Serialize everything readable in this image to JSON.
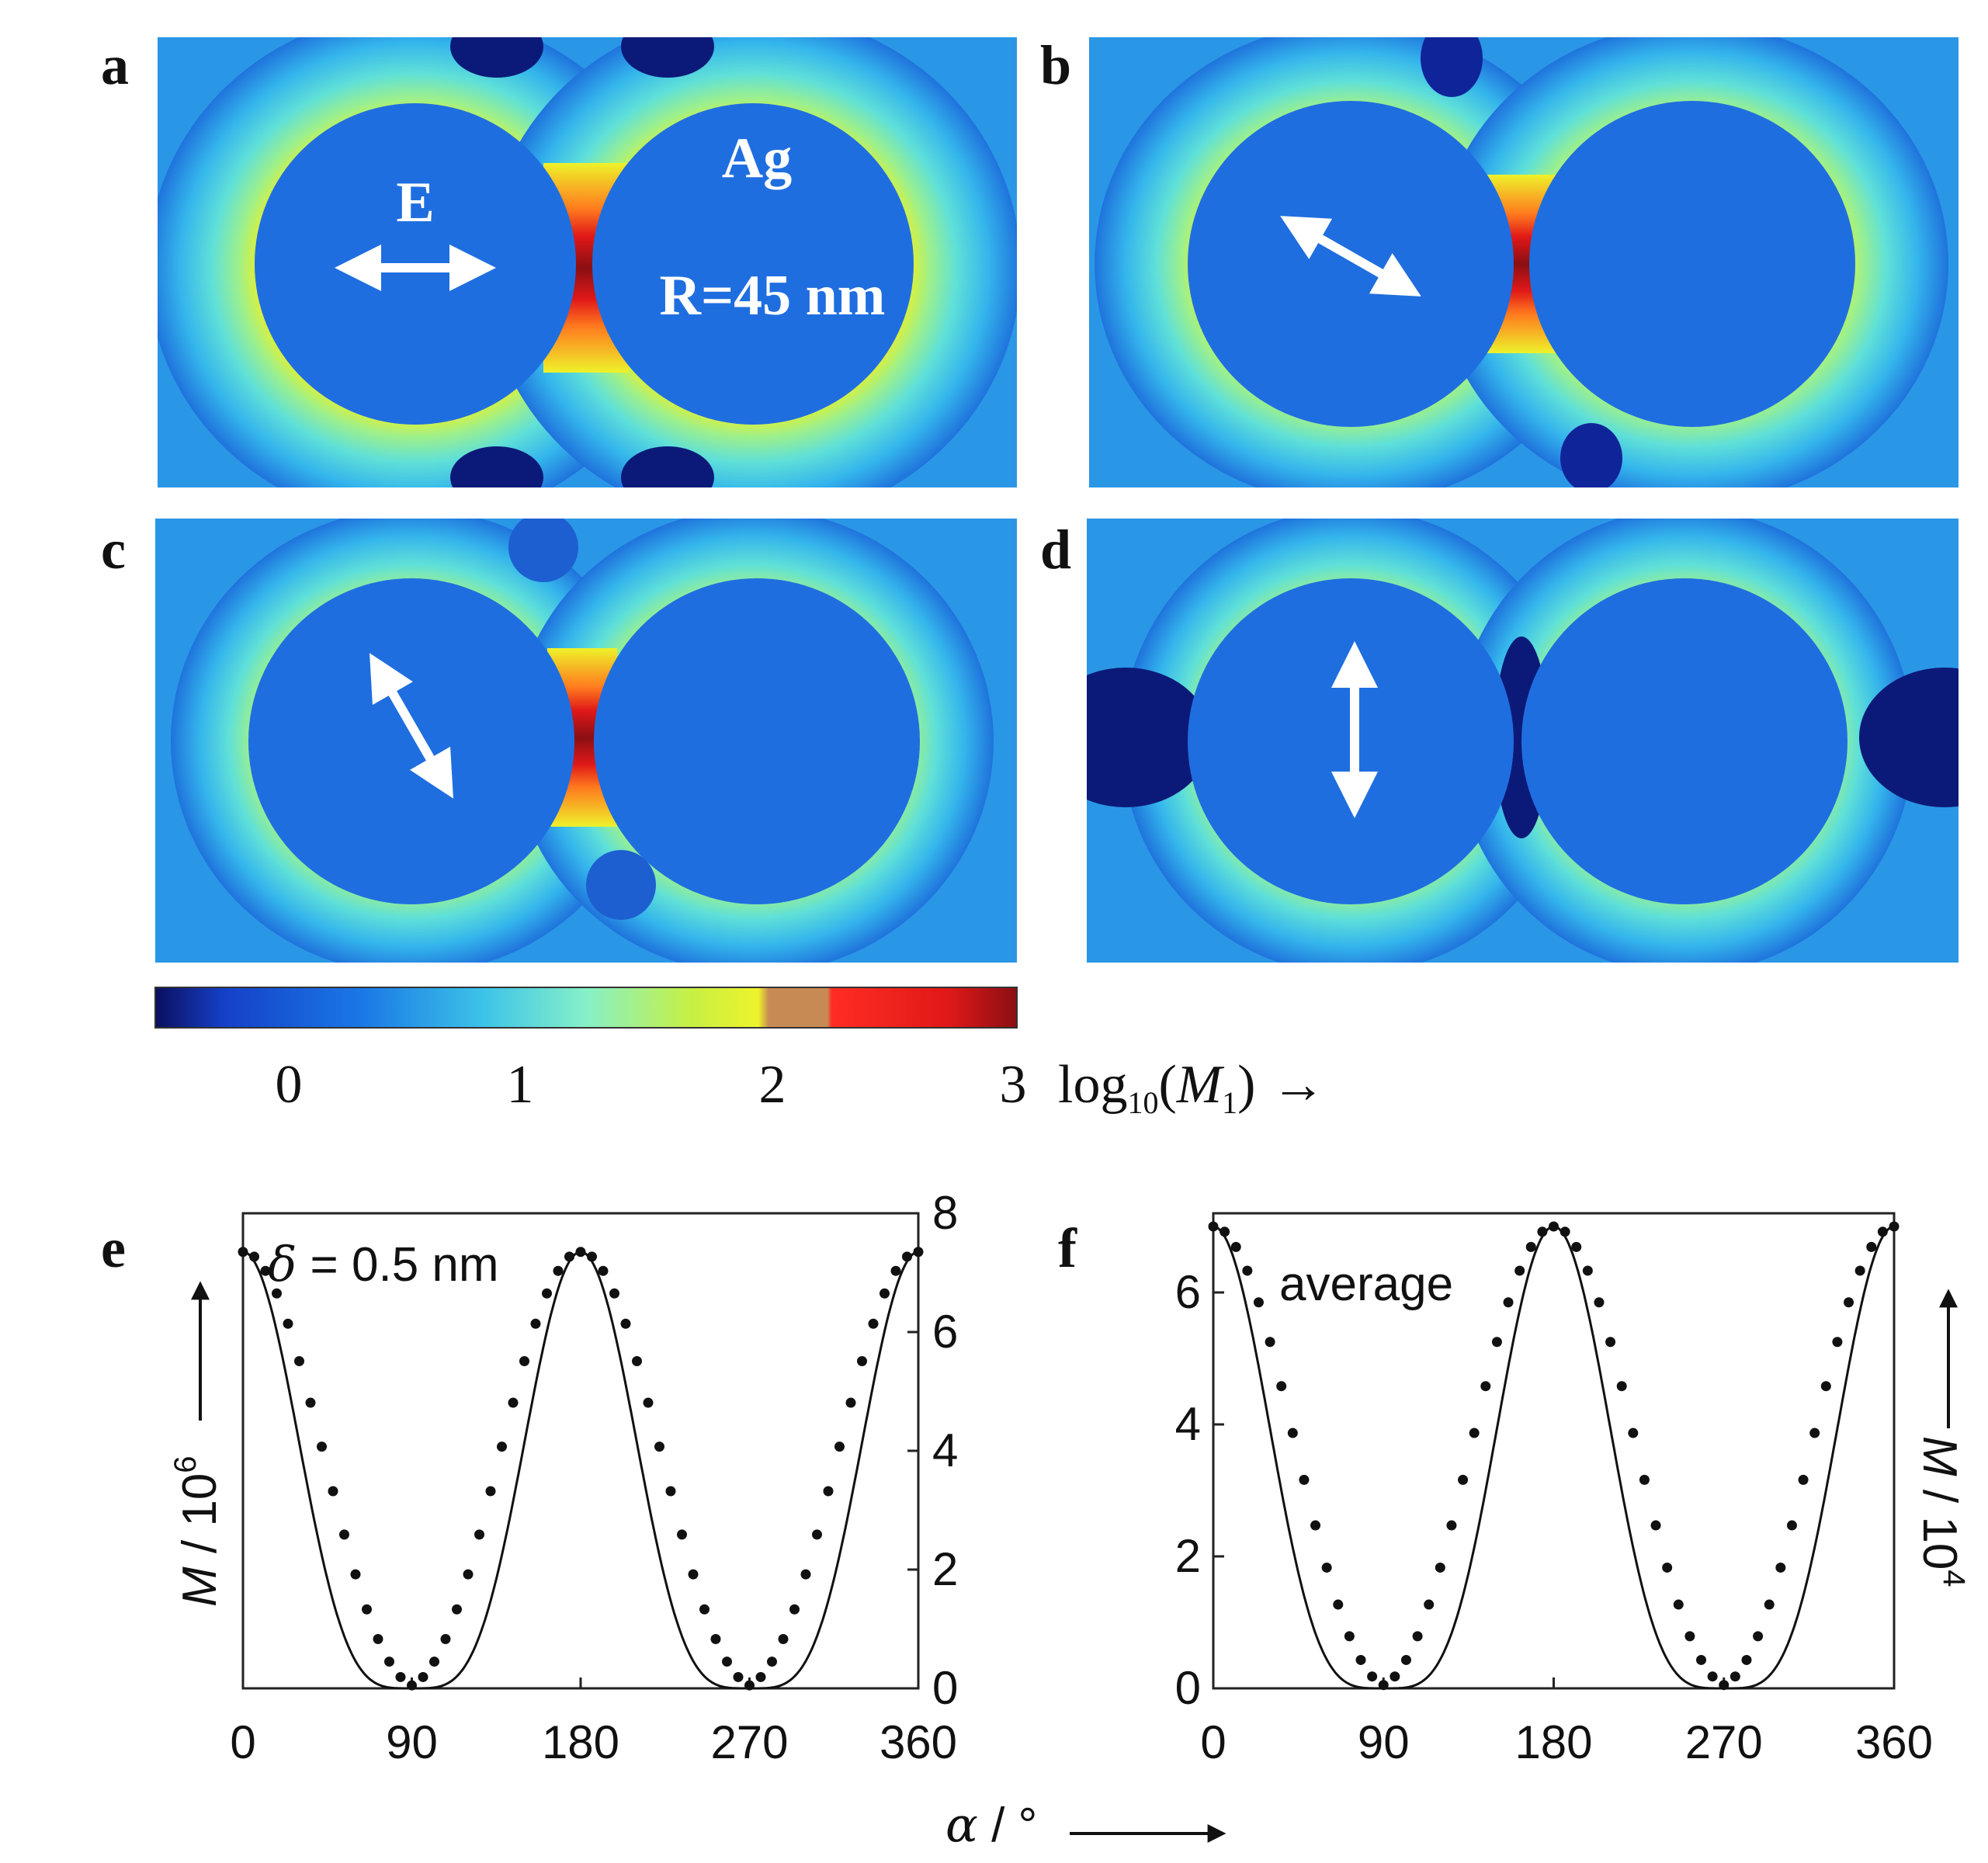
{
  "panels": [
    {
      "label": "a",
      "field_angle_deg": 0
    },
    {
      "label": "b",
      "field_angle_deg": 30
    },
    {
      "label": "c",
      "field_angle_deg": 60
    },
    {
      "label": "d",
      "field_angle_deg": 90
    }
  ],
  "panel_a": {
    "field_label": "E",
    "material": "Ag",
    "radius": "R=45 nm"
  },
  "colorbar": {
    "ticks": [
      "0",
      "1",
      "2",
      "3"
    ],
    "label_prefix": "log",
    "label_sub": "10",
    "label_paren_open": "(",
    "label_var": "M",
    "label_var_sub": "1",
    "label_paren_close": ")",
    "arrow": "→",
    "range": [
      -0.5,
      3
    ],
    "colors": [
      "#0b0f5e",
      "#1540c8",
      "#1a78e6",
      "#3cc3e8",
      "#86f0c8",
      "#c6f045",
      "#eef22a",
      "#c88a55",
      "#ff2d23",
      "#e01818",
      "#8a0f14"
    ]
  },
  "axes": {
    "x_label_var": "α",
    "x_label_unit": " / °",
    "x_arrow": "→"
  },
  "chart_data": [
    {
      "type": "line",
      "panel": "e",
      "annotation": "δ = 0.5 nm",
      "ylabel": "M / 10⁶",
      "ylabel_var": "M",
      "ylabel_unit": " / 10",
      "ylabel_exp": "6",
      "yaxis_side": "right",
      "xlim": [
        0,
        360
      ],
      "ylim": [
        0,
        8
      ],
      "x_ticks": [
        "0",
        "90",
        "180",
        "270",
        "360"
      ],
      "y_ticks": [
        "0",
        "2",
        "4",
        "6",
        "8"
      ],
      "peak": 7.35,
      "x": [
        0,
        6,
        12,
        18,
        24,
        30,
        36,
        42,
        48,
        54,
        60,
        66,
        72,
        78,
        84,
        90,
        96,
        102,
        108,
        114,
        120,
        126,
        132,
        138,
        144,
        150,
        156,
        162,
        168,
        174,
        180,
        186,
        192,
        198,
        204,
        210,
        216,
        222,
        228,
        234,
        240,
        246,
        252,
        258,
        264,
        270,
        276,
        282,
        288,
        294,
        300,
        306,
        312,
        318,
        324,
        330,
        336,
        342,
        348,
        354,
        360
      ],
      "y": [
        7.35,
        7.27,
        7.03,
        6.65,
        6.14,
        5.51,
        4.81,
        4.07,
        3.32,
        2.59,
        1.92,
        1.33,
        0.83,
        0.45,
        0.19,
        0.05,
        0.19,
        0.45,
        0.83,
        1.33,
        1.92,
        2.59,
        3.32,
        4.07,
        4.81,
        5.51,
        6.14,
        6.65,
        7.03,
        7.27,
        7.35,
        7.27,
        7.03,
        6.65,
        6.14,
        5.51,
        4.81,
        4.07,
        3.32,
        2.59,
        1.92,
        1.33,
        0.83,
        0.45,
        0.19,
        0.05,
        0.19,
        0.45,
        0.83,
        1.33,
        1.92,
        2.59,
        3.32,
        4.07,
        4.81,
        5.51,
        6.14,
        6.65,
        7.03,
        7.27,
        7.35
      ]
    },
    {
      "type": "line",
      "panel": "f",
      "annotation": "average",
      "ylabel": "M / 10⁴",
      "ylabel_var": "M",
      "ylabel_unit": " / 10",
      "ylabel_exp": "4",
      "yaxis_side": "left",
      "xlim": [
        0,
        360
      ],
      "ylim": [
        0,
        7.2
      ],
      "x_ticks": [
        "0",
        "90",
        "180",
        "270",
        "360"
      ],
      "y_ticks": [
        "0",
        "2",
        "4",
        "6"
      ],
      "peak": 7.0,
      "x": [
        0,
        6,
        12,
        18,
        24,
        30,
        36,
        42,
        48,
        54,
        60,
        66,
        72,
        78,
        84,
        90,
        96,
        102,
        108,
        114,
        120,
        126,
        132,
        138,
        144,
        150,
        156,
        162,
        168,
        174,
        180,
        186,
        192,
        198,
        204,
        210,
        216,
        222,
        228,
        234,
        240,
        246,
        252,
        258,
        264,
        270,
        276,
        282,
        288,
        294,
        300,
        306,
        312,
        318,
        324,
        330,
        336,
        342,
        348,
        354,
        360
      ],
      "y": [
        7.0,
        6.92,
        6.69,
        6.33,
        5.85,
        5.25,
        4.58,
        3.87,
        3.16,
        2.47,
        1.83,
        1.27,
        0.79,
        0.43,
        0.18,
        0.05,
        0.18,
        0.43,
        0.79,
        1.27,
        1.83,
        2.47,
        3.16,
        3.87,
        4.58,
        5.25,
        5.85,
        6.33,
        6.69,
        6.92,
        7.0,
        6.92,
        6.69,
        6.33,
        5.85,
        5.25,
        4.58,
        3.87,
        3.16,
        2.47,
        1.83,
        1.27,
        0.79,
        0.43,
        0.18,
        0.05,
        0.18,
        0.43,
        0.79,
        1.27,
        1.83,
        2.47,
        3.16,
        3.87,
        4.58,
        5.25,
        5.85,
        6.33,
        6.69,
        6.92,
        7.0
      ]
    }
  ]
}
